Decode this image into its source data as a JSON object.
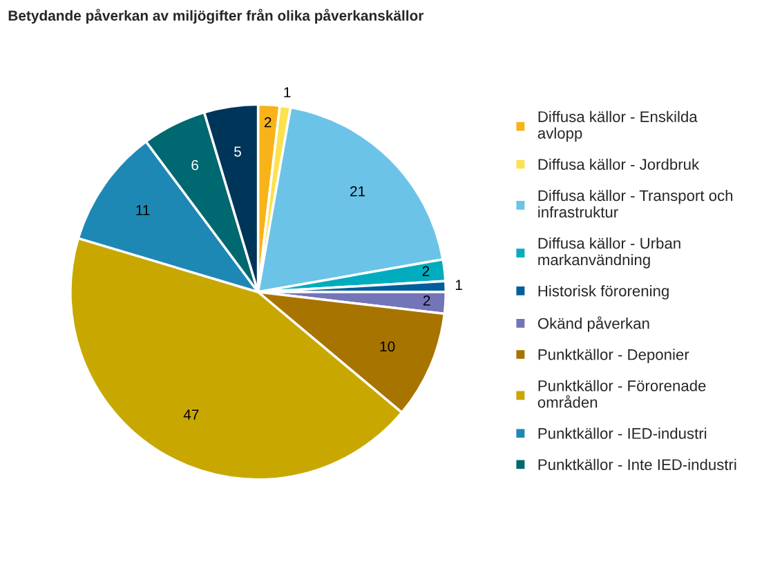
{
  "chart_data": {
    "type": "pie",
    "title": "Betydande påverkan av miljögifter från olika påverkanskällor",
    "categories": [
      "Diffusa källor - Enskilda avlopp",
      "Diffusa källor - Jordbruk",
      "Diffusa källor - Transport och infrastruktur",
      "Diffusa källor - Urban markanvändning",
      "Historisk förorening",
      "Okänd påverkan",
      "Punktkällor - Deponier",
      "Punktkällor - Förorenade områden",
      "Punktkällor - IED-industri",
      "Punktkällor - Inte IED-industri",
      null
    ],
    "values": [
      2,
      1,
      21,
      2,
      1,
      2,
      10,
      47,
      11,
      6,
      5
    ],
    "colors": [
      "#f8b31b",
      "#fde24f",
      "#6cc3e8",
      "#00acbd",
      "#005e9c",
      "#7474b8",
      "#a87400",
      "#c8a800",
      "#1e88b5",
      "#006870",
      "#00355a"
    ],
    "data_labels": true,
    "legend": "right"
  }
}
